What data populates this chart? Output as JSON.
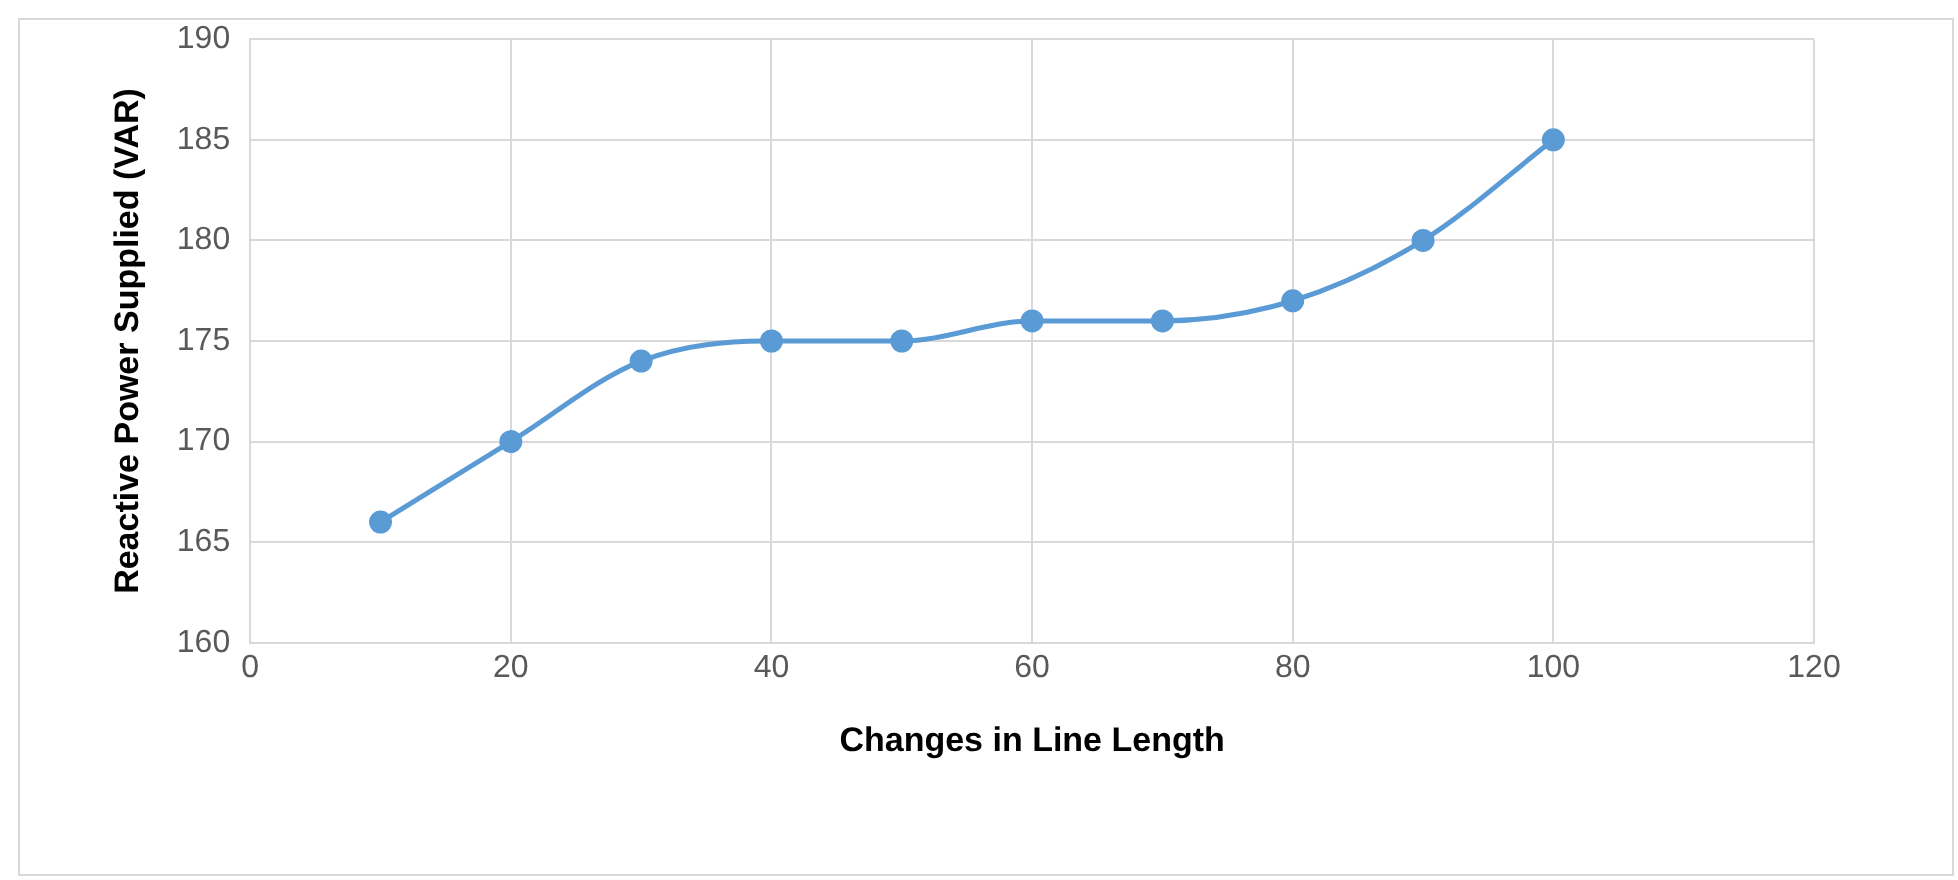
{
  "chart_data": {
    "type": "line",
    "xlabel": "Changes in Line Length",
    "ylabel": "Reactive Power Supplied (VAR)",
    "x": [
      10,
      20,
      30,
      40,
      50,
      60,
      70,
      80,
      90,
      100
    ],
    "series": [
      {
        "color": "#5b9bd5",
        "values": [
          166,
          170,
          174,
          175,
          175,
          176,
          176,
          177,
          180,
          185
        ]
      }
    ],
    "xlim": [
      0,
      120
    ],
    "xticks": [
      0,
      20,
      40,
      60,
      80,
      100,
      120
    ],
    "ylim": [
      160,
      190
    ],
    "yticks": [
      160,
      165,
      170,
      175,
      180,
      185,
      190
    ],
    "grid": true,
    "legend": false,
    "marker": "circle",
    "line_style": "solid"
  }
}
